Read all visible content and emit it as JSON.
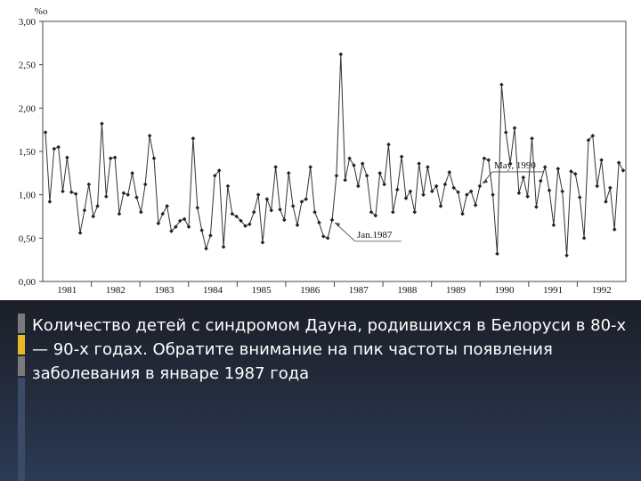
{
  "chart_data": {
    "type": "line",
    "unit_label": "%o",
    "y_ticks": [
      "0,00",
      "0,50",
      "1,00",
      "1,50",
      "2,00",
      "2,50",
      "3,00"
    ],
    "ylim": [
      0,
      3
    ],
    "year_labels": [
      "1981",
      "1982",
      "1983",
      "1984",
      "1985",
      "1986",
      "1987",
      "1988",
      "1989",
      "1990",
      "1991",
      "1992"
    ],
    "annotations": [
      {
        "label": "Jan.1987",
        "index": 66
      },
      {
        "label": "May, 1990",
        "index": 100
      }
    ],
    "series": [
      {
        "values": [
          1.72,
          0.92,
          1.53,
          1.55,
          1.04,
          1.43,
          1.03,
          1.01,
          0.56,
          0.82,
          1.12,
          0.75,
          0.87,
          1.82,
          0.98,
          1.42,
          1.43,
          0.78,
          1.02,
          1.0,
          1.25,
          0.97,
          0.8,
          1.12,
          1.68,
          1.42,
          0.67,
          0.78,
          0.87,
          0.58,
          0.63,
          0.7,
          0.72,
          0.63,
          1.65,
          0.85,
          0.59,
          0.38,
          0.53,
          1.22,
          1.28,
          0.4,
          1.1,
          0.78,
          0.75,
          0.7,
          0.64,
          0.66,
          0.8,
          1.0,
          0.45,
          0.95,
          0.82,
          1.32,
          0.83,
          0.71,
          1.25,
          0.87,
          0.65,
          0.92,
          0.95,
          1.32,
          0.8,
          0.68,
          0.52,
          0.5,
          0.71,
          1.22,
          2.62,
          1.17,
          1.42,
          1.34,
          1.1,
          1.36,
          1.22,
          0.8,
          0.76,
          1.25,
          1.12,
          1.58,
          0.8,
          1.06,
          1.44,
          0.96,
          1.04,
          0.8,
          1.36,
          1.0,
          1.32,
          1.04,
          1.1,
          0.87,
          1.12,
          1.26,
          1.08,
          1.03,
          0.78,
          1.0,
          1.04,
          0.88,
          1.1,
          1.42,
          1.4,
          1.0,
          0.32,
          2.27,
          1.72,
          1.36,
          1.77,
          1.02,
          1.2,
          0.98,
          1.65,
          0.86,
          1.16,
          1.32,
          1.05,
          0.65,
          1.3,
          1.04,
          0.3,
          1.27,
          1.24,
          0.97,
          0.5,
          1.63,
          1.68,
          1.1,
          1.4,
          0.92,
          1.08,
          0.6,
          1.37,
          1.28
        ]
      }
    ],
    "grid": false
  },
  "caption": {
    "text": "Количество детей с синдромом Дауна, родившихся в Белоруси в 80-х — 90-х годах. Обратите внимание на пик частоты появления заболевания в январе 1987 года"
  },
  "colors": {
    "line": "#333333",
    "accent_gray": "#8a8a8a",
    "accent_yellow": "#e8b923",
    "panel_dark": "#1b1f28"
  }
}
